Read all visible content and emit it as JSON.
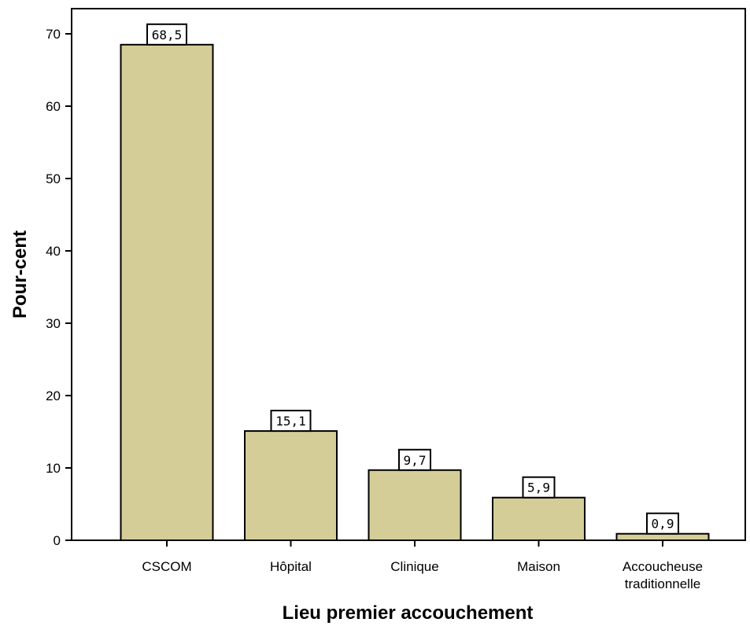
{
  "chart_data": {
    "type": "bar",
    "categories": [
      [
        "CSCOM"
      ],
      [
        "Hôpital"
      ],
      [
        "Clinique"
      ],
      [
        "Maison"
      ],
      [
        "Accoucheuse",
        "traditionnelle"
      ]
    ],
    "values": [
      68.5,
      15.1,
      9.7,
      5.9,
      0.9
    ],
    "data_labels": [
      "68,5",
      "15,1",
      "9,7",
      "5,9",
      "0,9"
    ],
    "xlabel": "Lieu premier accouchement",
    "ylabel": "Pour-cent",
    "ylim": [
      0,
      70
    ],
    "yticks": [
      0,
      10,
      20,
      30,
      40,
      50,
      60,
      70
    ],
    "grid": false,
    "colors": {
      "bar_fill": "#d4cd98",
      "bar_stroke": "#000000",
      "label_box": "#ffffff"
    }
  }
}
